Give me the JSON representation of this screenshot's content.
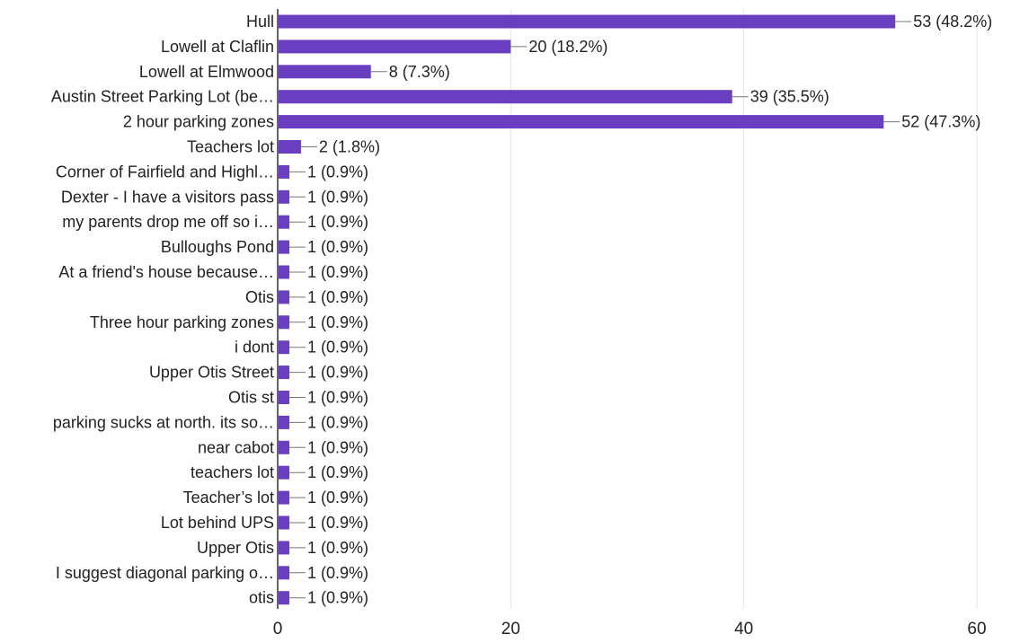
{
  "chart_data": {
    "type": "bar",
    "orientation": "horizontal",
    "title": "",
    "xlabel": "",
    "ylabel": "",
    "xlim": [
      0,
      60
    ],
    "x_ticks": [
      0,
      20,
      40,
      60
    ],
    "grid": true,
    "legend": "none",
    "bar_color": "#6a3ec1",
    "categories": [
      "Hull",
      "Lowell at Claflin",
      "Lowell at Elmwood",
      "Austin Street Parking Lot (be…",
      "2 hour parking zones",
      "Teachers lot",
      "Corner of Fairfield and Highl…",
      "Dexter - I have a visitors pass",
      "my parents drop me off so i…",
      "Bulloughs Pond",
      "At a friend's house because…",
      "Otis",
      "Three hour parking zones",
      "i dont",
      "Upper Otis Street",
      "Otis st",
      "parking sucks at north. its so…",
      "near cabot",
      "teachers lot",
      "Teacher’s lot",
      "Lot behind UPS",
      "Upper Otis",
      "I suggest diagonal parking o…",
      "otis"
    ],
    "values": [
      53,
      20,
      8,
      39,
      52,
      2,
      1,
      1,
      1,
      1,
      1,
      1,
      1,
      1,
      1,
      1,
      1,
      1,
      1,
      1,
      1,
      1,
      1,
      1
    ],
    "data_labels": [
      "53 (48.2%)",
      "20 (18.2%)",
      "8 (7.3%)",
      "39 (35.5%)",
      "52 (47.3%)",
      "2 (1.8%)",
      "1 (0.9%)",
      "1 (0.9%)",
      "1 (0.9%)",
      "1 (0.9%)",
      "1 (0.9%)",
      "1 (0.9%)",
      "1 (0.9%)",
      "1 (0.9%)",
      "1 (0.9%)",
      "1 (0.9%)",
      "1 (0.9%)",
      "1 (0.9%)",
      "1 (0.9%)",
      "1 (0.9%)",
      "1 (0.9%)",
      "1 (0.9%)",
      "1 (0.9%)",
      "1 (0.9%)"
    ]
  }
}
